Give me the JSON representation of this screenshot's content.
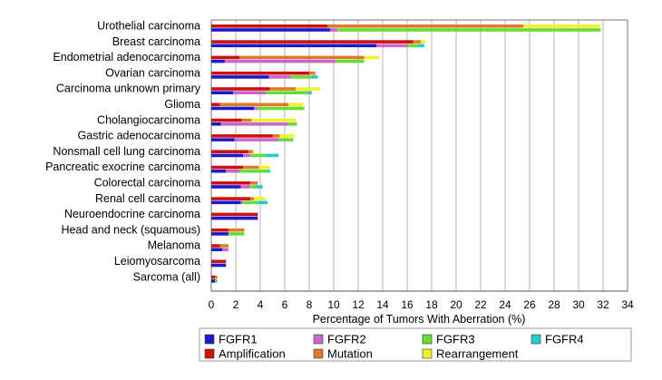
{
  "chart_data": {
    "type": "bar",
    "orientation": "horizontal",
    "stacked": true,
    "xlabel": "Percentage of Tumors With Aberration (%)",
    "xlim": [
      0,
      34
    ],
    "xticks": [
      0,
      2,
      4,
      6,
      8,
      10,
      12,
      14,
      16,
      18,
      20,
      22,
      24,
      26,
      28,
      30,
      32,
      34
    ],
    "grid": true,
    "legend_position": "bottom",
    "categories": [
      "Urothelial carcinoma",
      "Breast carcinoma",
      "Endometrial adenocarcinoma",
      "Ovarian carcinoma",
      "Carcinoma unknown primary",
      "Glioma",
      "Cholangiocarcinoma",
      "Gastric adenocarcinoma",
      "Nonsmall cell lung carcinoma",
      "Pancreatic exocrine carcinoma",
      "Colorectal carcinoma",
      "Renal cell carcinoma",
      "Neuroendocrine carcinoma",
      "Head and neck (squamous)",
      "Melanoma",
      "Leiomyosarcoma",
      "Sarcoma (all)"
    ],
    "aberration_series": [
      {
        "name": "Amplification",
        "color": "#cc1111",
        "values": [
          9.5,
          16.5,
          2.3,
          8.0,
          4.8,
          0.7,
          2.5,
          5.0,
          3.0,
          2.6,
          3.2,
          3.2,
          3.8,
          1.4,
          0.7,
          1.2,
          0.3
        ]
      },
      {
        "name": "Mutation",
        "color": "#e07a2a",
        "values": [
          16.0,
          0.6,
          10.2,
          0.5,
          2.1,
          5.6,
          0.8,
          0.6,
          0.4,
          1.3,
          0.6,
          0.3,
          0.0,
          1.3,
          0.7,
          0.0,
          0.2
        ]
      },
      {
        "name": "Rearrangement",
        "color": "#f2f22a",
        "values": [
          6.3,
          0.4,
          1.2,
          0.0,
          2.0,
          1.2,
          3.6,
          1.2,
          0.1,
          0.9,
          0.0,
          0.9,
          0.0,
          0.0,
          0.0,
          0.0,
          0.0
        ]
      }
    ],
    "gene_series": [
      {
        "name": "FGFR1",
        "color": "#1a1acc",
        "values": [
          9.7,
          13.5,
          1.1,
          4.7,
          1.8,
          3.5,
          0.8,
          1.9,
          2.6,
          1.2,
          2.4,
          2.4,
          3.8,
          1.4,
          0.9,
          1.2,
          0.3
        ]
      },
      {
        "name": "FGFR2",
        "color": "#cc66cc",
        "values": [
          0.6,
          2.5,
          9.1,
          1.8,
          2.7,
          0.3,
          5.5,
          3.6,
          0.6,
          1.1,
          0.8,
          0.2,
          0.0,
          0.0,
          0.5,
          0.0,
          0.0
        ]
      },
      {
        "name": "FGFR3",
        "color": "#66dd33",
        "values": [
          21.5,
          0.9,
          2.3,
          1.7,
          3.4,
          3.8,
          0.7,
          1.2,
          1.2,
          2.3,
          0.4,
          1.2,
          0.0,
          1.3,
          0.0,
          0.0,
          0.2
        ]
      },
      {
        "name": "FGFR4",
        "color": "#22cccc",
        "values": [
          0.0,
          0.5,
          0.0,
          0.5,
          0.3,
          0.0,
          0.0,
          0.0,
          1.1,
          0.2,
          0.6,
          0.8,
          0.0,
          0.0,
          0.0,
          0.0,
          0.0
        ]
      }
    ],
    "legend_rows": [
      [
        "FGFR1",
        "FGFR2",
        "FGFR3",
        "FGFR4"
      ],
      [
        "Amplification",
        "Mutation",
        "Rearrangement"
      ]
    ]
  }
}
